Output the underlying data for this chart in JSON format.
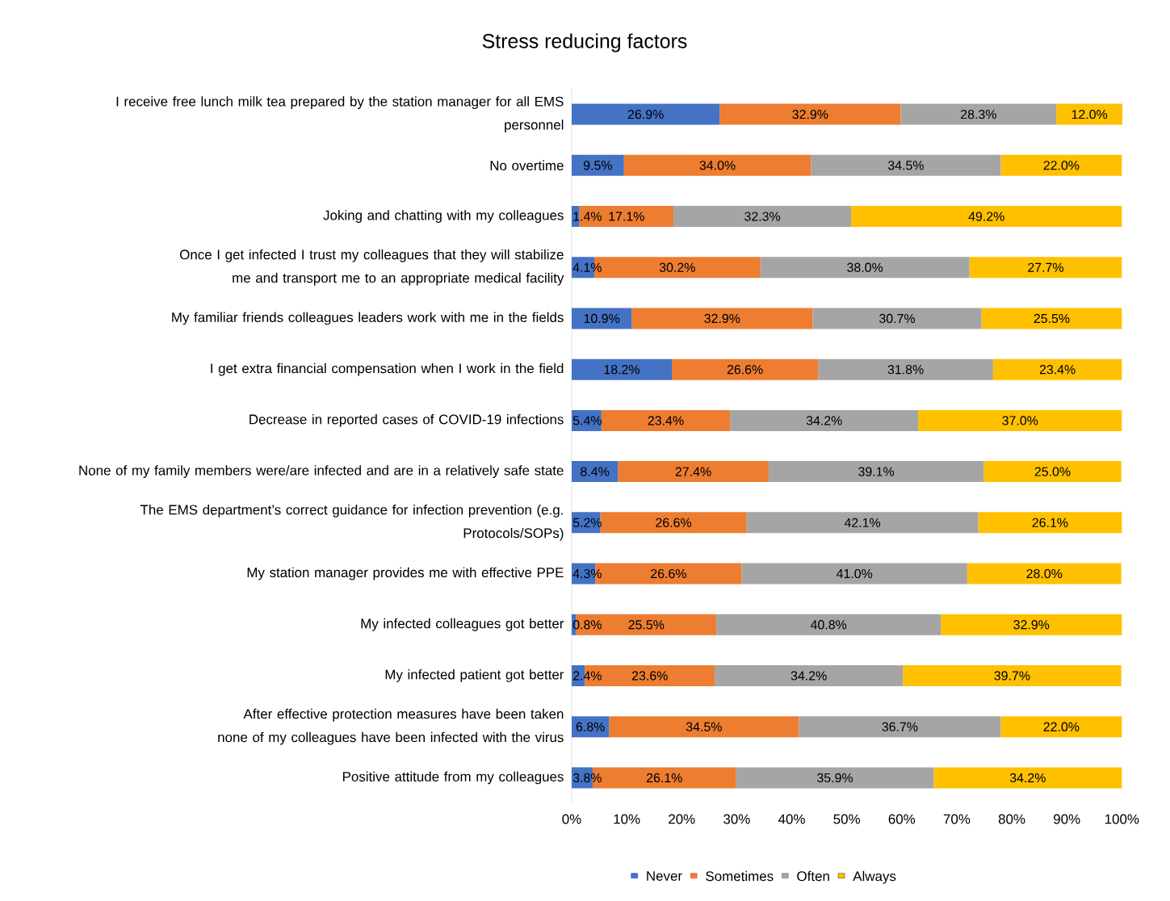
{
  "chart_data": {
    "type": "bar",
    "orientation": "horizontal",
    "stacked": true,
    "title": "Stress reducing factors",
    "categories": [
      "I receive free lunch milk tea prepared by the station manager for all EMS personnel",
      "No overtime",
      "Joking and chatting with my colleagues",
      "Once I get infected I trust my colleagues that they will stabilize me and transport me to an appropriate medical facility",
      "My familiar friends colleagues leaders work with me in the fields",
      "I get extra financial compensation when I work in the field",
      "Decrease in reported cases of COVID-19 infections",
      "None of my family members were/are infected and are in a relatively safe state",
      "The EMS department’s correct guidance for infection prevention (e.g. Protocols/SOPs)",
      "My station manager provides me with effective PPE",
      "My infected colleagues got better",
      "My infected patient got better",
      "After effective protection measures have been taken none of my colleagues have been infected with the virus",
      "Positive attitude from my colleagues"
    ],
    "series": [
      {
        "name": "Never",
        "color": "#4472c4",
        "values": [
          26.9,
          9.5,
          1.4,
          4.1,
          10.9,
          18.2,
          5.4,
          8.4,
          5.2,
          4.3,
          0.8,
          2.4,
          6.8,
          3.8
        ],
        "value_labels": [
          "26.9%",
          "9.5%",
          "1.4%",
          "4.1%",
          "10.9%",
          "18.2%",
          "5.4%",
          "8.4%",
          "5.2%",
          "4.3%",
          "0.8%",
          "2.4%",
          "6.8%",
          "3.8%"
        ]
      },
      {
        "name": "Sometimes",
        "color": "#ed7d31",
        "values": [
          32.9,
          34.0,
          17.1,
          30.2,
          32.9,
          26.6,
          23.4,
          27.4,
          26.6,
          26.6,
          25.5,
          23.6,
          34.5,
          26.1
        ],
        "value_labels": [
          "32.9%",
          "34.0%",
          "17.1%",
          "30.2%",
          "32.9%",
          "26.6%",
          "23.4%",
          "27.4%",
          "26.6%",
          "26.6%",
          "25.5%",
          "23.6%",
          "34.5%",
          "26.1%"
        ]
      },
      {
        "name": "Often",
        "color": "#a5a5a5",
        "values": [
          28.3,
          34.5,
          32.3,
          38.0,
          30.7,
          31.8,
          34.2,
          39.1,
          42.1,
          41.0,
          40.8,
          34.2,
          36.7,
          35.9
        ],
        "value_labels": [
          "28.3%",
          "34.5%",
          "32.3%",
          "38.0%",
          "30.7%",
          "31.8%",
          "34.2%",
          "39.1%",
          "42.1%",
          "41.0%",
          "40.8%",
          "34.2%",
          "36.7%",
          "35.9%"
        ]
      },
      {
        "name": "Always",
        "color": "#ffc000",
        "values": [
          12.0,
          22.0,
          49.2,
          27.7,
          25.5,
          23.4,
          37.0,
          25.0,
          26.1,
          28.0,
          32.9,
          39.7,
          22.0,
          34.2
        ],
        "value_labels": [
          "12.0%",
          "22.0%",
          "49.2%",
          "27.7%",
          "25.5%",
          "23.4%",
          "37.0%",
          "25.0%",
          "26.1%",
          "28.0%",
          "32.9%",
          "39.7%",
          "22.0%",
          "34.2%"
        ]
      }
    ],
    "xlim": [
      0,
      100.1
    ],
    "xticks": [
      {
        "value": 0,
        "label": "0%"
      },
      {
        "value": 10,
        "label": "10%"
      },
      {
        "value": 20,
        "label": "20%"
      },
      {
        "value": 30,
        "label": "30%"
      },
      {
        "value": 40,
        "label": "40%"
      },
      {
        "value": 50,
        "label": "50%"
      },
      {
        "value": 60,
        "label": "60%"
      },
      {
        "value": 70,
        "label": "70%"
      },
      {
        "value": 80,
        "label": "80%"
      },
      {
        "value": 90,
        "label": "90%"
      },
      {
        "value": 100,
        "label": "100%"
      }
    ],
    "grid": false,
    "legend": "bottom"
  }
}
